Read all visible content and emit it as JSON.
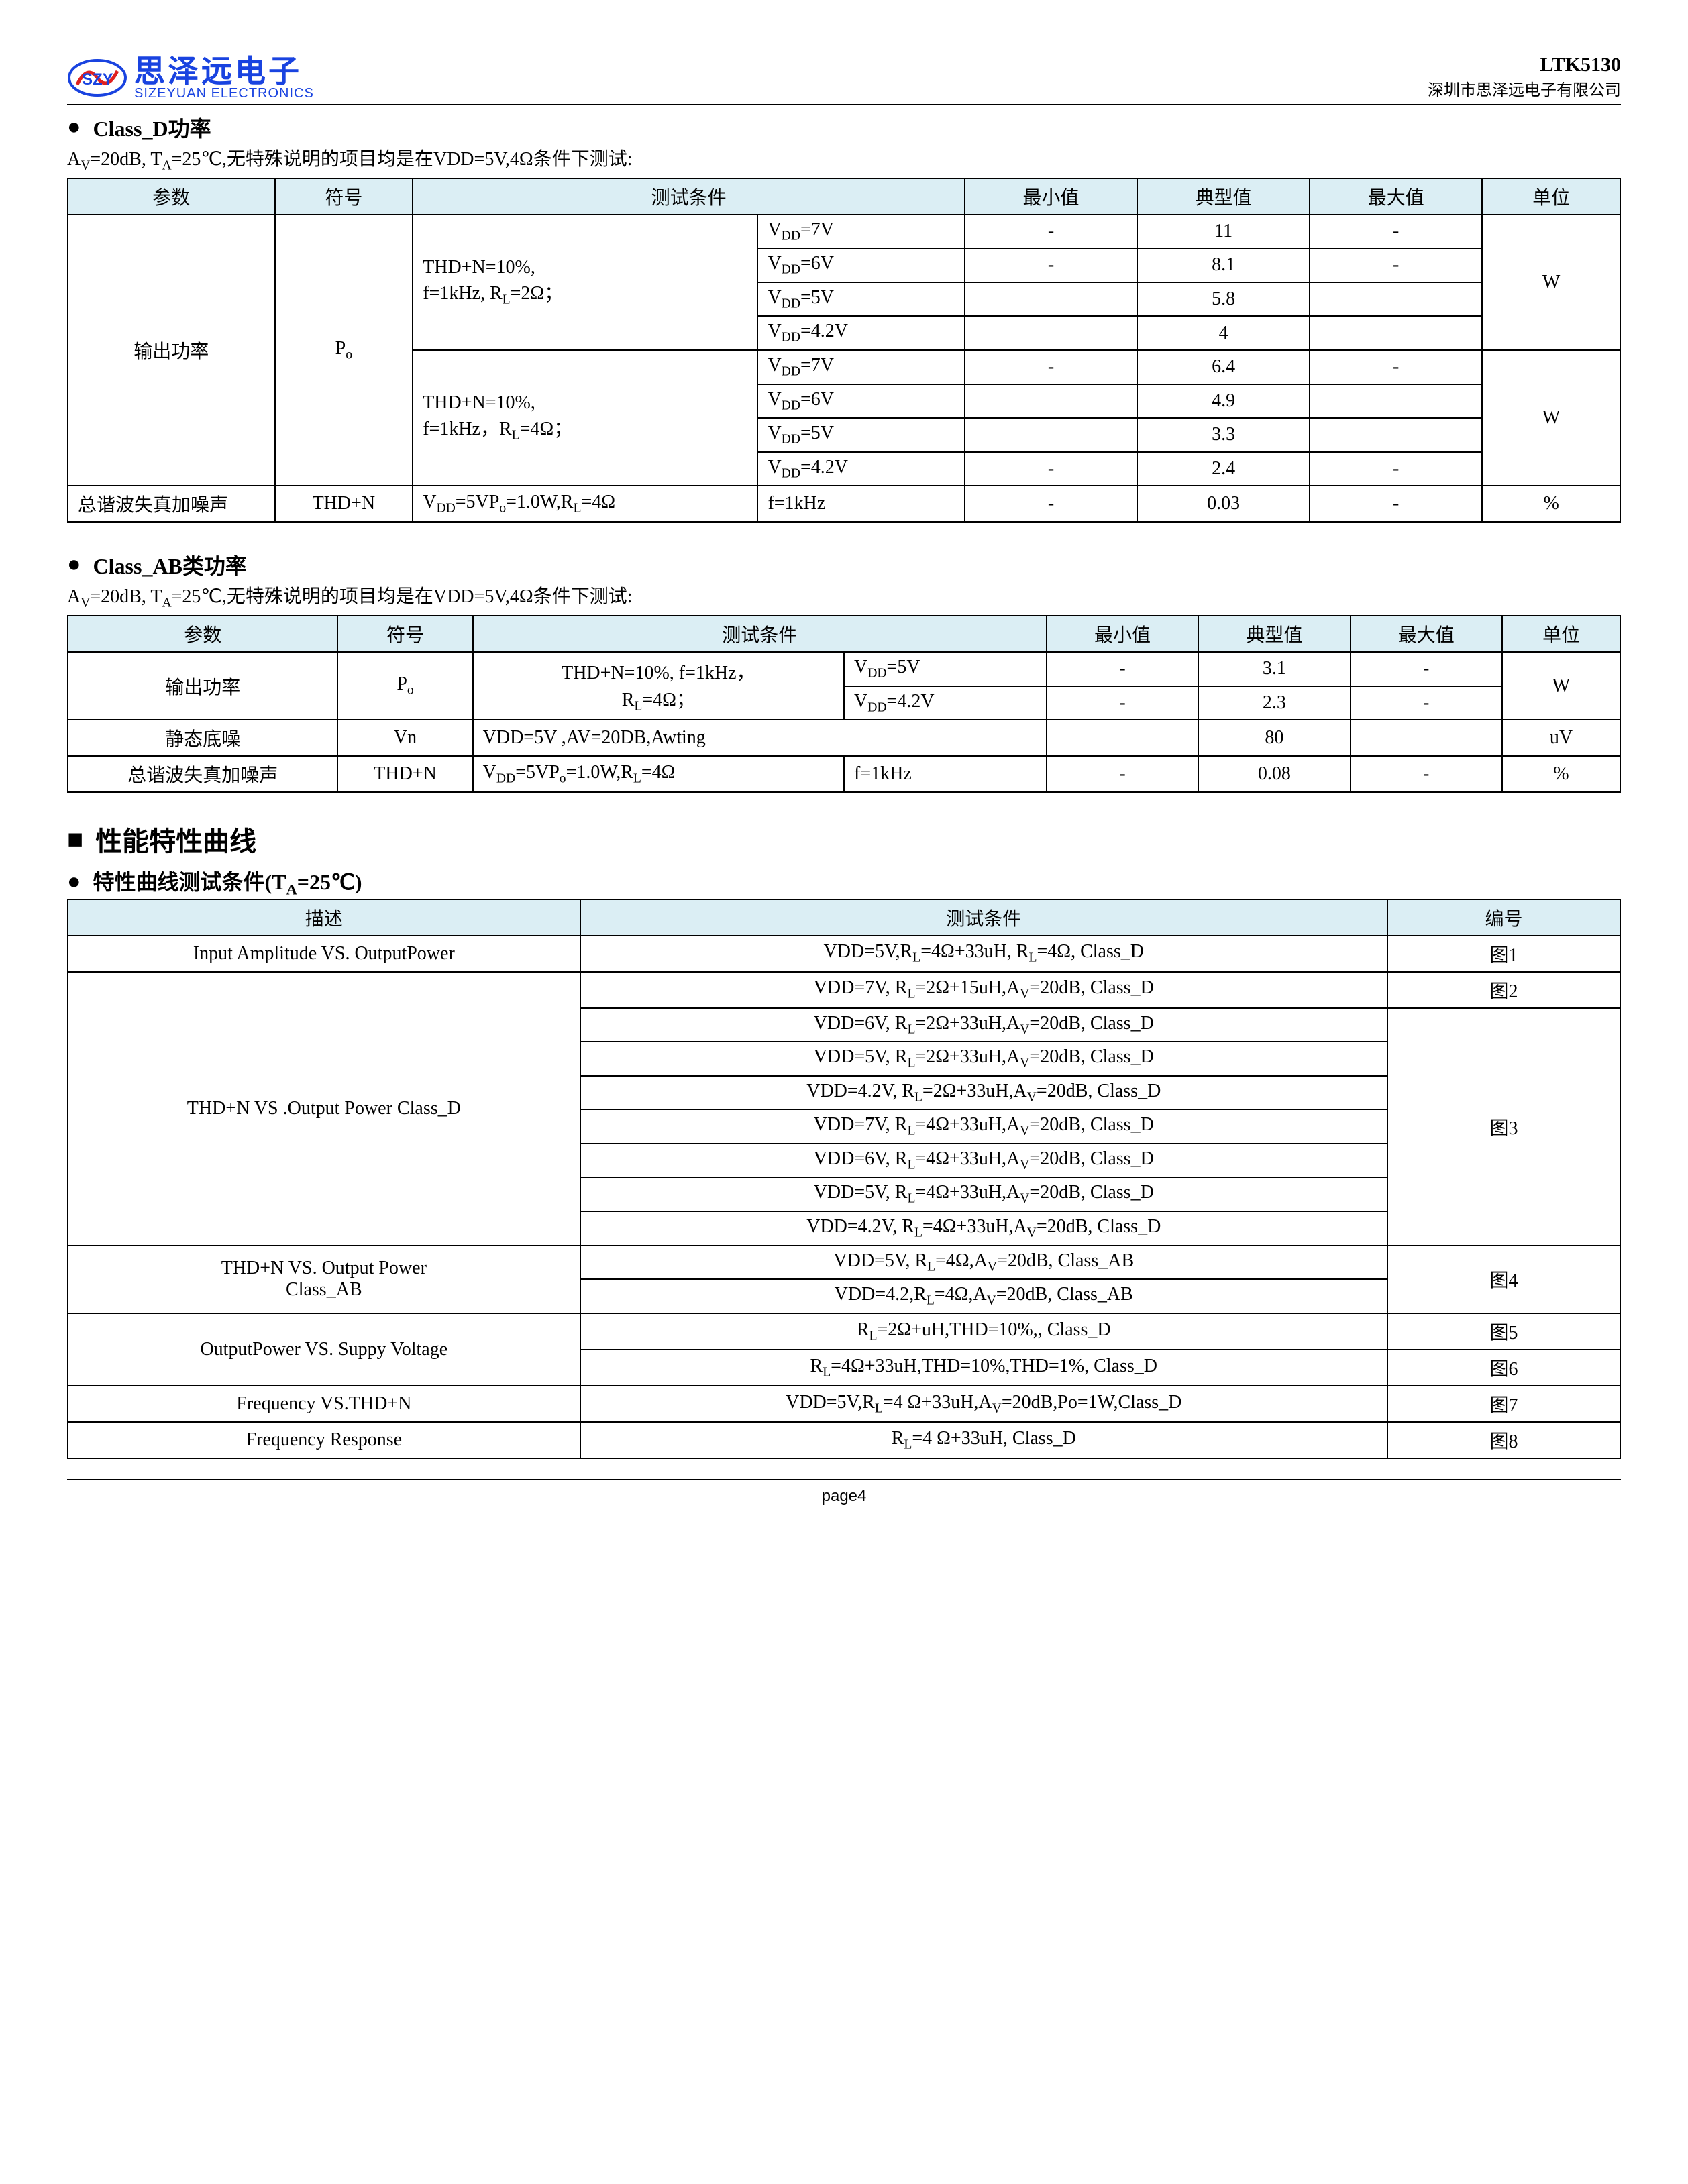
{
  "theme": {
    "header_bg": "#dbeef4",
    "border": "#000000",
    "logo_blue": "#1943e0",
    "logo_red": "#e02020"
  },
  "header": {
    "logo_cn": "思泽远电子",
    "logo_en": "SIZEYUAN ELECTRONICS",
    "part_no": "LTK5130",
    "company": "深圳市思泽远电子有限公司"
  },
  "sec1": {
    "title": "Class_D功率",
    "cond_prefix": "A",
    "cond_full": "=20dB, T",
    "cond_rest": "=25℃,无特殊说明的项目均是在VDD=5V,4Ω条件下测试:",
    "headers": [
      "参数",
      "符号",
      "测试条件",
      "最小值",
      "典型值",
      "最大值",
      "单位"
    ],
    "r1": {
      "param": "输出功率",
      "sym": "P",
      "sym_sub": "o",
      "tc1_a": "THD+N=10%,",
      "tc1_b": "f=1kHz, R",
      "tc1_c": "=2Ω；",
      "tc2_a": "THD+N=10%,",
      "tc2_b": "f=1kHz，R",
      "tc2_c": "=4Ω；",
      "rows1": [
        {
          "vdd": "=7V",
          "min": "-",
          "typ": "11",
          "max": "-"
        },
        {
          "vdd": "=6V",
          "min": "-",
          "typ": "8.1",
          "max": "-"
        },
        {
          "vdd": "=5V",
          "min": "",
          "typ": "5.8",
          "max": ""
        },
        {
          "vdd": "=4.2V",
          "min": "",
          "typ": "4",
          "max": ""
        }
      ],
      "rows2": [
        {
          "vdd": "=7V",
          "min": "-",
          "typ": "6.4",
          "max": "-"
        },
        {
          "vdd": "=6V",
          "min": "",
          "typ": "4.9",
          "max": ""
        },
        {
          "vdd": "=5V",
          "min": "",
          "typ": "3.3",
          "max": ""
        },
        {
          "vdd": "=4.2V",
          "min": "-",
          "typ": "2.4",
          "max": "-"
        }
      ],
      "unit": "W"
    },
    "r2": {
      "param": "总谐波失真加噪声",
      "sym": "THD+N",
      "tc": "=5VP",
      "tc2": "=1.0W,R",
      "tc3": "=4Ω",
      "sub": "f=1kHz",
      "min": "-",
      "typ": "0.03",
      "max": "-",
      "unit": "%"
    }
  },
  "sec2": {
    "title": "Class_AB类功率",
    "cond_prefix": "A",
    "cond_full": "=20dB, T",
    "cond_rest": "=25℃,无特殊说明的项目均是在VDD=5V,4Ω条件下测试:",
    "headers": [
      "参数",
      "符号",
      "测试条件",
      "最小值",
      "典型值",
      "最大值",
      "单位"
    ],
    "r1": {
      "param": "输出功率",
      "sym": "P",
      "sym_sub": "o",
      "tc_a": "THD+N=10%, f=1kHz，",
      "tc_b": "R",
      "tc_c": "=4Ω；",
      "rows": [
        {
          "vdd": "=5V",
          "min": "-",
          "typ": "3.1",
          "max": "-"
        },
        {
          "vdd": "=4.2V",
          "min": "-",
          "typ": "2.3",
          "max": "-"
        }
      ],
      "unit": "W"
    },
    "r2": {
      "param": "静态底噪",
      "sym": "Vn",
      "tc": "VDD=5V ,AV=20DB,Awting",
      "min": "",
      "typ": "80",
      "max": "",
      "unit": "uV"
    },
    "r3": {
      "param": "总谐波失真加噪声",
      "sym": "THD+N",
      "tc1": "=5VP",
      "tc2": "=1.0W,R",
      "tc3": "=4Ω",
      "sub": "f=1kHz",
      "min": "-",
      "typ": "0.08",
      "max": "-",
      "unit": "%"
    }
  },
  "sec3": {
    "big_title": "性能特性曲线",
    "sub_title_a": "特性曲线测试条件(T",
    "sub_title_b": "=25℃)",
    "headers": [
      "描述",
      "测试条件",
      "编号"
    ],
    "rows": [
      {
        "desc": "Input Amplitude VS. OutputPower",
        "cond": "VDD=5V,R|L|=4Ω+33uH, R|L|=4Ω, Class_D",
        "fig": "图1",
        "rs": 1
      },
      {
        "desc": "THD+N VS .Output Power Class_D",
        "cond": "VDD=7V, R|L|=2Ω+15uH,A|V|=20dB, Class_D",
        "fig": "图2",
        "rs": 8,
        "fig_rs": 1
      },
      {
        "cond": "VDD=6V, R|L|=2Ω+33uH,A|V|=20dB, Class_D"
      },
      {
        "cond": "VDD=5V, R|L|=2Ω+33uH,A|V|=20dB, Class_D"
      },
      {
        "cond": "VDD=4.2V, R|L|=2Ω+33uH,A|V|=20dB, Class_D"
      },
      {
        "cond": "VDD=7V, R|L|=4Ω+33uH,A|V|=20dB, Class_D",
        "fig": "图3",
        "fig_rs": 1
      },
      {
        "cond": "VDD=6V, R|L|=4Ω+33uH,A|V|=20dB, Class_D"
      },
      {
        "cond": "VDD=5V, R|L|=4Ω+33uH,A|V|=20dB, Class_D"
      },
      {
        "cond": "VDD=4.2V, R|L|=4Ω+33uH,A|V|=20dB, Class_D"
      },
      {
        "desc": "THD+N VS. Output Power\nClass_AB",
        "cond": "VDD=5V, R|L|=4Ω,A|V|=20dB, Class_AB",
        "fig": "图4",
        "rs": 2,
        "fig_rs": 2
      },
      {
        "cond": "VDD=4.2,R|L|=4Ω,A|V|=20dB, Class_AB"
      },
      {
        "desc": "OutputPower VS. Suppy Voltage",
        "cond": "R|L|=2Ω+uH,THD=10%,, Class_D",
        "fig": "图5",
        "rs": 2,
        "fig_rs": 1
      },
      {
        "cond": "R|L|=4Ω+33uH,THD=10%,THD=1%, Class_D",
        "fig": "图6",
        "fig_rs": 1
      },
      {
        "desc": "Frequency VS.THD+N",
        "cond": "VDD=5V,R|L|=4 Ω+33uH,A|V|=20dB,Po=1W,Class_D",
        "fig": "图7",
        "rs": 1
      },
      {
        "desc": "Frequency Response",
        "cond": "R|L|=4 Ω+33uH, Class_D",
        "fig": "图8",
        "rs": 1
      }
    ]
  },
  "footer": "page4"
}
